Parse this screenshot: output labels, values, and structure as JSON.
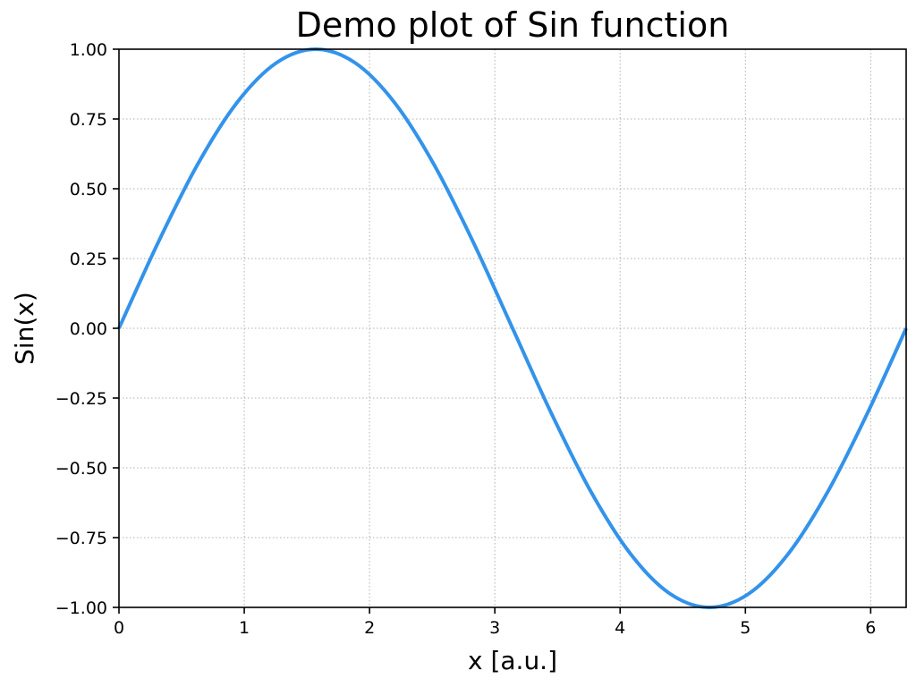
{
  "chart_data": {
    "type": "line",
    "title": "Demo plot of Sin function",
    "xlabel": "x [a.u.]",
    "ylabel": "Sin(x)",
    "xlim": [
      0,
      6.283185307
    ],
    "ylim": [
      -1.0,
      1.0
    ],
    "x_ticks": [
      0,
      1,
      2,
      3,
      4,
      5,
      6
    ],
    "x_tick_labels": [
      "0",
      "1",
      "2",
      "3",
      "4",
      "5",
      "6"
    ],
    "y_ticks": [
      -1.0,
      -0.75,
      -0.5,
      -0.25,
      0.0,
      0.25,
      0.5,
      0.75,
      1.0
    ],
    "y_tick_labels": [
      "−1.00",
      "−0.75",
      "−0.50",
      "−0.25",
      "0.00",
      "0.25",
      "0.50",
      "0.75",
      "1.00"
    ],
    "grid": true,
    "series": [
      {
        "color": "#3393ea",
        "x": [
          0.0,
          0.3142,
          0.6283,
          0.9425,
          1.2566,
          1.5708,
          1.885,
          2.1991,
          2.5133,
          2.8274,
          3.1416,
          3.4558,
          3.7699,
          4.0841,
          4.3982,
          4.7124,
          5.0265,
          5.3407,
          5.6549,
          5.969,
          6.2832
        ],
        "values": [
          0.0,
          0.309,
          0.5878,
          0.809,
          0.9511,
          1.0,
          0.9511,
          0.809,
          0.5878,
          0.309,
          0.0,
          -0.309,
          -0.5878,
          -0.809,
          -0.9511,
          -1.0,
          -0.9511,
          -0.809,
          -0.5878,
          -0.309,
          0.0
        ]
      }
    ]
  }
}
